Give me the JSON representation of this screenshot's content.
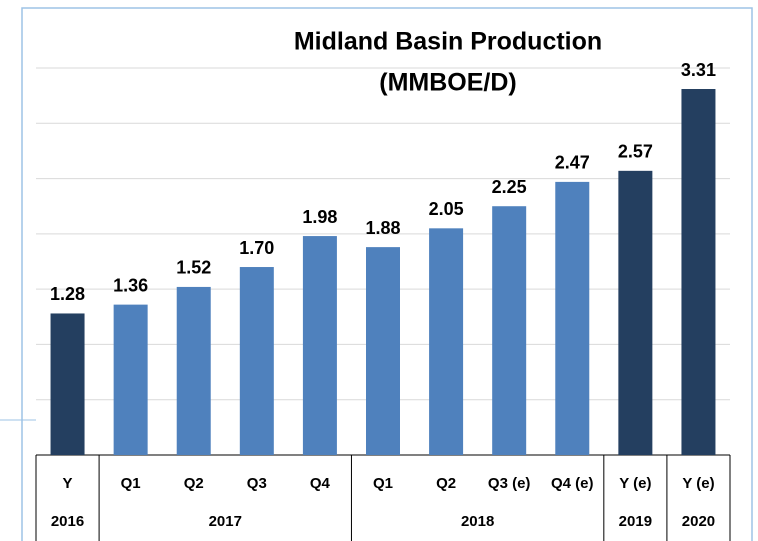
{
  "chart_data": {
    "type": "bar",
    "title": [
      "Midland Basin Production",
      "(MMBOE/D)"
    ],
    "categories": [
      "Y",
      "Q1",
      "Q2",
      "Q3",
      "Q4",
      "Q1",
      "Q2",
      "Q3 (e)",
      "Q4 (e)",
      "Y (e)",
      "Y (e)"
    ],
    "groups": [
      {
        "label": "2016",
        "count": 1
      },
      {
        "label": "2017",
        "count": 4
      },
      {
        "label": "2018",
        "count": 4
      },
      {
        "label": "2019",
        "count": 1
      },
      {
        "label": "2020",
        "count": 1
      }
    ],
    "values": [
      1.28,
      1.36,
      1.52,
      1.7,
      1.98,
      1.88,
      2.05,
      2.25,
      2.47,
      2.57,
      3.31
    ],
    "value_labels": [
      "1.28",
      "1.36",
      "1.52",
      "1.70",
      "1.98",
      "1.88",
      "2.05",
      "2.25",
      "2.47",
      "2.57",
      "3.31"
    ],
    "colors": [
      "#243f60",
      "#4f81bd",
      "#4f81bd",
      "#4f81bd",
      "#4f81bd",
      "#4f81bd",
      "#4f81bd",
      "#4f81bd",
      "#4f81bd",
      "#243f60",
      "#243f60"
    ],
    "ylim": [
      0,
      3.5
    ],
    "yticks": [
      0,
      0.5,
      1,
      1.5,
      2,
      2.5,
      3,
      3.5
    ],
    "grid": true
  }
}
